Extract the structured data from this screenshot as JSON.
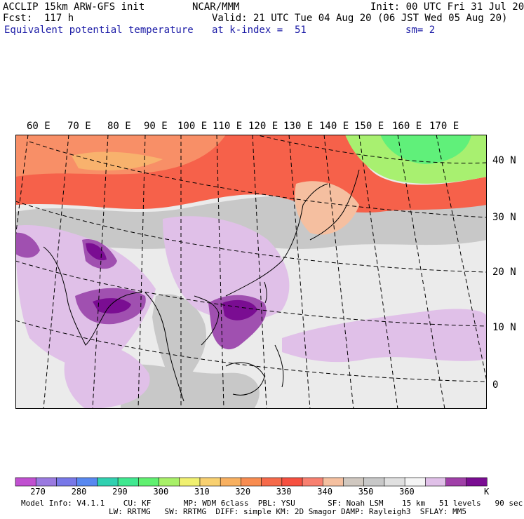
{
  "header": {
    "model_title": "ACCLIP 15km ARW-GFS init",
    "producer": "NCAR/MMM",
    "init": "Init: 00 UTC Fri 31 Jul 20",
    "fcst": "Fcst:  117 h",
    "valid": "Valid: 21 UTC Tue 04 Aug 20 (06 JST Wed 05 Aug 20)",
    "field": "Equivalent potential temperature",
    "level": "at k-index =  51",
    "smoothing": "sm= 2"
  },
  "map": {
    "lon_labels": [
      "60 E",
      "70 E",
      "80 E",
      "90 E",
      "100 E",
      "110 E",
      "120 E",
      "130 E",
      "140 E",
      "150 E",
      "160 E",
      "170 E"
    ],
    "lat_labels": [
      "40 N",
      "30 N",
      "20 N",
      "10 N",
      "0"
    ],
    "colors": {
      "warm_band": "#f6614a",
      "warm_band_light": "#f88f67",
      "salmon": "#f5bfa0",
      "gray_dark": "#c8c8c8",
      "gray_light": "#ebebeb",
      "lilac": "#e0c0e8",
      "purple": "#a050b0",
      "deep_purple": "#7a0d92",
      "green": "#60f07a",
      "light_green": "#a8f070"
    }
  },
  "colorbar": {
    "colors": [
      "#c050d0",
      "#9a7ae0",
      "#7878e8",
      "#5888f0",
      "#30d0b0",
      "#40e890",
      "#60f070",
      "#a8f068",
      "#f0f070",
      "#f8d070",
      "#f8b060",
      "#f88c50",
      "#f66a4a",
      "#f65040",
      "#f88070",
      "#f5c0a0",
      "#d0c8c0",
      "#c8c8c8",
      "#e0e0e0",
      "#f5f5f5",
      "#e0c0e8",
      "#a040a8",
      "#7a0d92"
    ],
    "tick_labels": [
      "270",
      "280",
      "290",
      "300",
      "310",
      "320",
      "330",
      "340",
      "350",
      "360"
    ],
    "unit": "K"
  },
  "footer": {
    "line1": "Model Info: V4.1.1    CU: KF       MP: WDM 6class  PBL: YSU       SF: Noah LSM    15 km   51 levels   90 sec",
    "line2": "LW: RRTMG   SW: RRTMG  DIFF: simple KM: 2D Smagor DAMP: Rayleigh3  SFLAY: MM5"
  }
}
